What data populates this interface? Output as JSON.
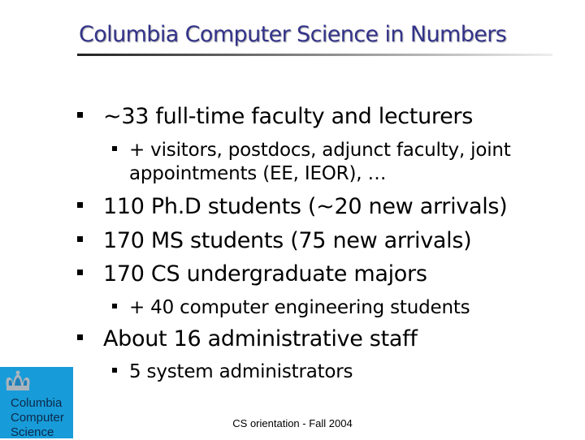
{
  "title": "Columbia Computer Science in Numbers",
  "bullets": [
    {
      "text": "~33 full-time faculty and lecturers"
    },
    {
      "text": "+ visitors, postdocs, adjunct faculty, joint appointments (EE, IEOR), …"
    },
    {
      "text": "110 Ph.D students (~20 new arrivals)"
    },
    {
      "text": "170 MS students (75 new arrivals)"
    },
    {
      "text": "170 CS undergraduate majors"
    },
    {
      "text": "+ 40 computer engineering students"
    },
    {
      "text": "About 16 administrative staff"
    },
    {
      "text": "5 system administrators"
    }
  ],
  "logo": {
    "lines": [
      "Columbia",
      "Computer",
      "Science"
    ],
    "icon": "crown-icon",
    "color": "#189bd9"
  },
  "footer": "CS orientation - Fall 2004",
  "colors": {
    "title": "#33338a"
  }
}
